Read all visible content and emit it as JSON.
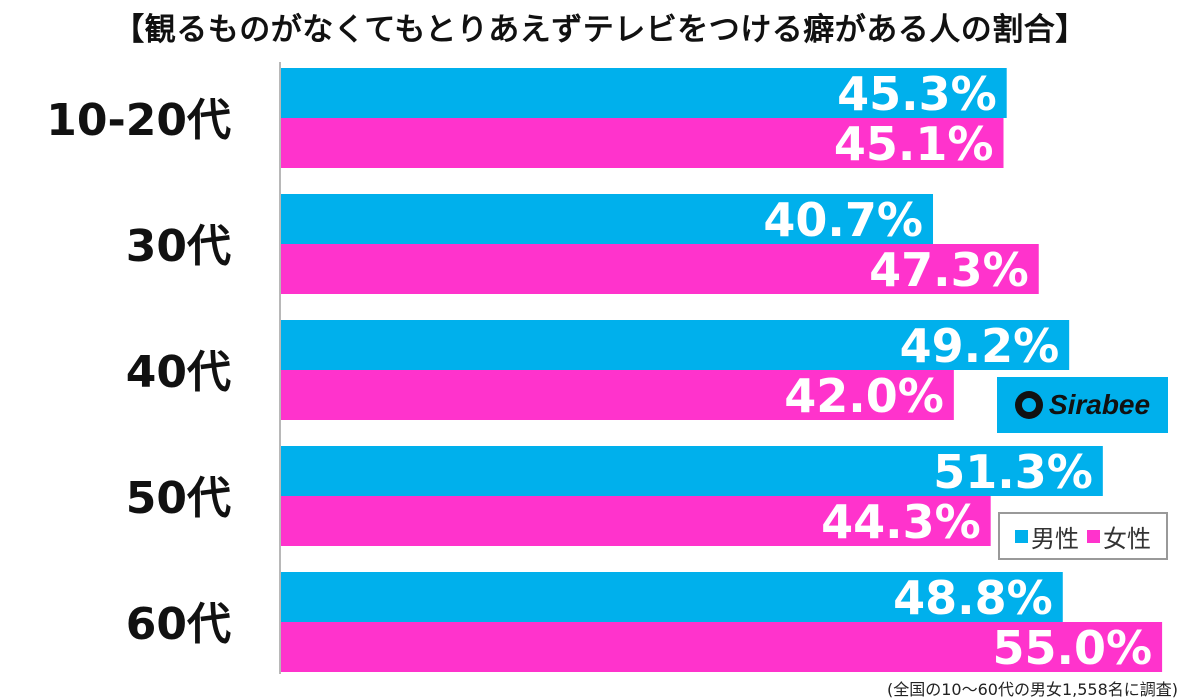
{
  "chart_data": {
    "type": "bar",
    "orientation": "horizontal",
    "title": "【観るものがなくてもとりあえずテレビをつける癖がある人の割合】",
    "categories": [
      "10-20代",
      "30代",
      "40代",
      "50代",
      "60代"
    ],
    "series": [
      {
        "name": "男性",
        "values": [
          45.3,
          40.7,
          49.2,
          51.3,
          48.8
        ],
        "color": "#00b0ec"
      },
      {
        "name": "女性",
        "values": [
          45.1,
          47.3,
          42.0,
          44.3,
          55.0
        ],
        "color": "#ff33cc"
      }
    ],
    "value_labels": {
      "男性": [
        "45.3%",
        "40.7%",
        "49.2%",
        "51.3%",
        "48.8%"
      ],
      "女性": [
        "45.1%",
        "47.3%",
        "42.0%",
        "44.3%",
        "55.0%"
      ]
    },
    "xlim": [
      0,
      55
    ],
    "grid": false,
    "legend_position": "bottom-right"
  },
  "brand": {
    "logo_text": "Sirabee",
    "logo_icon": "sirabee-logo-icon"
  },
  "footnote": "(全国の10〜60代の男女1,558名に調査)"
}
